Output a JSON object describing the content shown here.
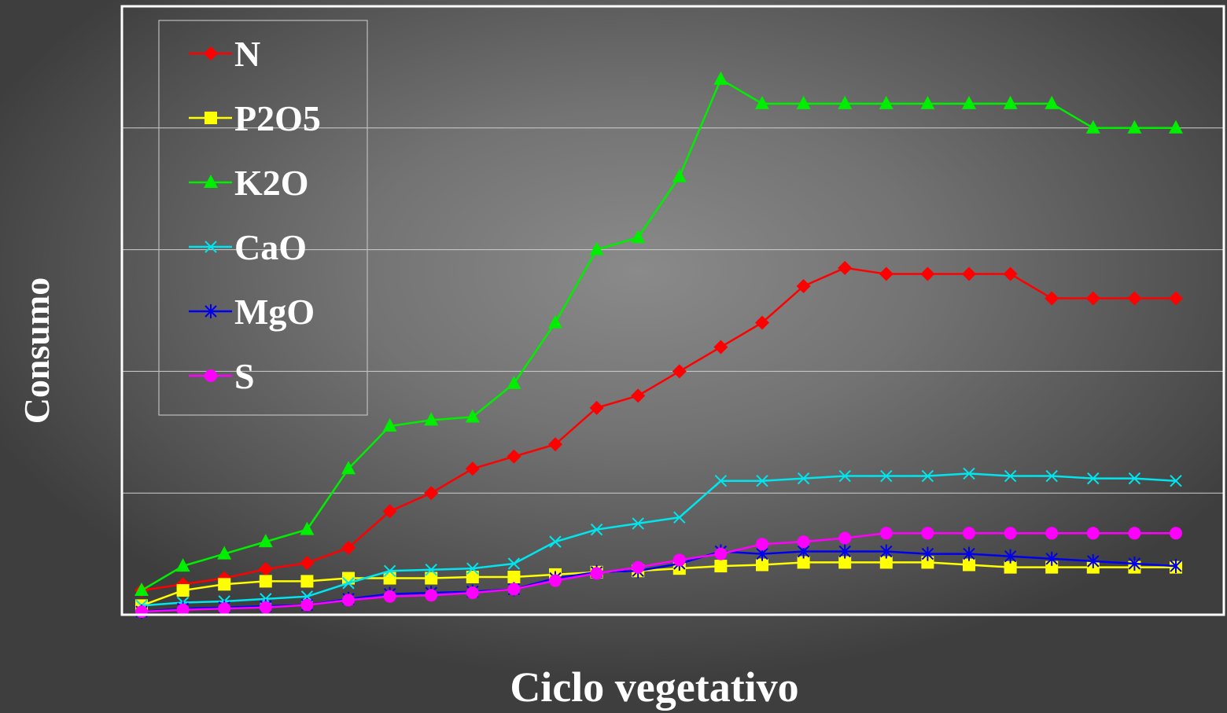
{
  "chart_data": {
    "type": "line",
    "xlabel": "Ciclo vegetativo",
    "ylabel": "Consumo",
    "ylim": [
      0,
      100
    ],
    "grid": true,
    "legend_position": "top-left",
    "x": [
      1,
      2,
      3,
      4,
      5,
      6,
      7,
      8,
      9,
      10,
      11,
      12,
      13,
      14,
      15,
      16,
      17,
      18,
      19,
      20,
      21,
      22,
      23,
      24,
      25,
      26
    ],
    "series": [
      {
        "name": "N",
        "color": "#ff0000",
        "marker": "diamond",
        "values": [
          4,
          5,
          6,
          7.5,
          8.5,
          11,
          17,
          20,
          24,
          26,
          28,
          34,
          36,
          40,
          44,
          48,
          54,
          57,
          56,
          56,
          56,
          56,
          52,
          52,
          52,
          52
        ]
      },
      {
        "name": "P2O5",
        "color": "#ffff00",
        "marker": "square",
        "values": [
          1.5,
          4,
          5,
          5.5,
          5.5,
          6,
          6,
          6,
          6.2,
          6.2,
          6.6,
          7,
          7.2,
          7.6,
          8,
          8.2,
          8.6,
          8.6,
          8.6,
          8.6,
          8.2,
          7.8,
          7.8,
          7.8,
          7.8,
          7.8
        ]
      },
      {
        "name": "K2O",
        "color": "#00ee00",
        "marker": "triangle",
        "values": [
          4,
          8,
          10,
          12,
          14,
          24,
          31,
          32,
          32.5,
          38,
          48,
          60,
          62,
          72,
          88,
          84,
          84,
          84,
          84,
          84,
          84,
          84,
          84,
          80,
          80,
          80
        ]
      },
      {
        "name": "CaO",
        "color": "#00e5ee",
        "marker": "x",
        "values": [
          1.5,
          2,
          2.2,
          2.6,
          3,
          5.2,
          7.2,
          7.4,
          7.6,
          8.4,
          12,
          14,
          15,
          16,
          22,
          22,
          22.4,
          22.8,
          22.8,
          22.8,
          23.2,
          22.8,
          22.8,
          22.4,
          22.4,
          22
        ]
      },
      {
        "name": "MgO",
        "color": "#0000ee",
        "marker": "star",
        "values": [
          0.5,
          1,
          1.2,
          1.4,
          1.6,
          2.6,
          3.4,
          3.6,
          3.8,
          4.2,
          6,
          7,
          7.2,
          8.4,
          10.4,
          10,
          10.4,
          10.4,
          10.4,
          10,
          10,
          9.6,
          9.2,
          8.8,
          8.4,
          8
        ]
      },
      {
        "name": "S",
        "color": "#ff00ff",
        "marker": "circle",
        "values": [
          0.5,
          0.8,
          1,
          1.2,
          1.6,
          2.4,
          3,
          3.2,
          3.6,
          4.2,
          5.6,
          6.8,
          7.8,
          9,
          10,
          11.6,
          12,
          12.6,
          13.4,
          13.4,
          13.4,
          13.4,
          13.4,
          13.4,
          13.4,
          13.4
        ]
      }
    ]
  }
}
